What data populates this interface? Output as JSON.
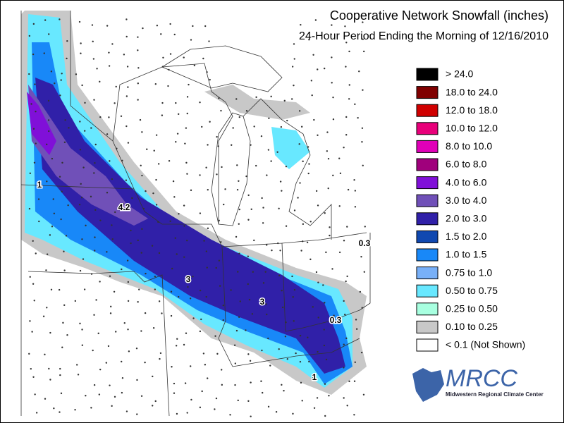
{
  "header": {
    "title": "Cooperative Network Snowfall (inches)",
    "subtitle": "24-Hour Period Ending the Morning of 12/16/2010"
  },
  "legend": {
    "items": [
      {
        "label": "> 24.0",
        "color": "#000000"
      },
      {
        "label": "18.0 to 24.0",
        "color": "#800000"
      },
      {
        "label": "12.0 to 18.0",
        "color": "#d00000"
      },
      {
        "label": "10.0 to 12.0",
        "color": "#e8007a"
      },
      {
        "label": "8.0 to 10.0",
        "color": "#e000b8"
      },
      {
        "label": "6.0 to 8.0",
        "color": "#a0007c"
      },
      {
        "label": "4.0 to 6.0",
        "color": "#8010d8"
      },
      {
        "label": "3.0 to 4.0",
        "color": "#7050b8"
      },
      {
        "label": "2.0 to 3.0",
        "color": "#3020a8"
      },
      {
        "label": "1.5 to 2.0",
        "color": "#1048b0"
      },
      {
        "label": "1.0 to 1.5",
        "color": "#1888f8"
      },
      {
        "label": "0.75 to 1.0",
        "color": "#78b0f8"
      },
      {
        "label": "0.50 to 0.75",
        "color": "#68e8ff"
      },
      {
        "label": "0.25 to 0.50",
        "color": "#a8ffe0"
      },
      {
        "label": "0.10 to 0.25",
        "color": "#c8c8c8"
      },
      {
        "label": "< 0.1 (Not Shown)",
        "color": "#ffffff"
      }
    ]
  },
  "map": {
    "labels": [
      "1",
      "4.2",
      "3",
      "3",
      "0.3",
      "0.3",
      "1"
    ]
  },
  "logo": {
    "name": "MRCC",
    "subtitle": "Midwestern Regional Climate Center"
  }
}
